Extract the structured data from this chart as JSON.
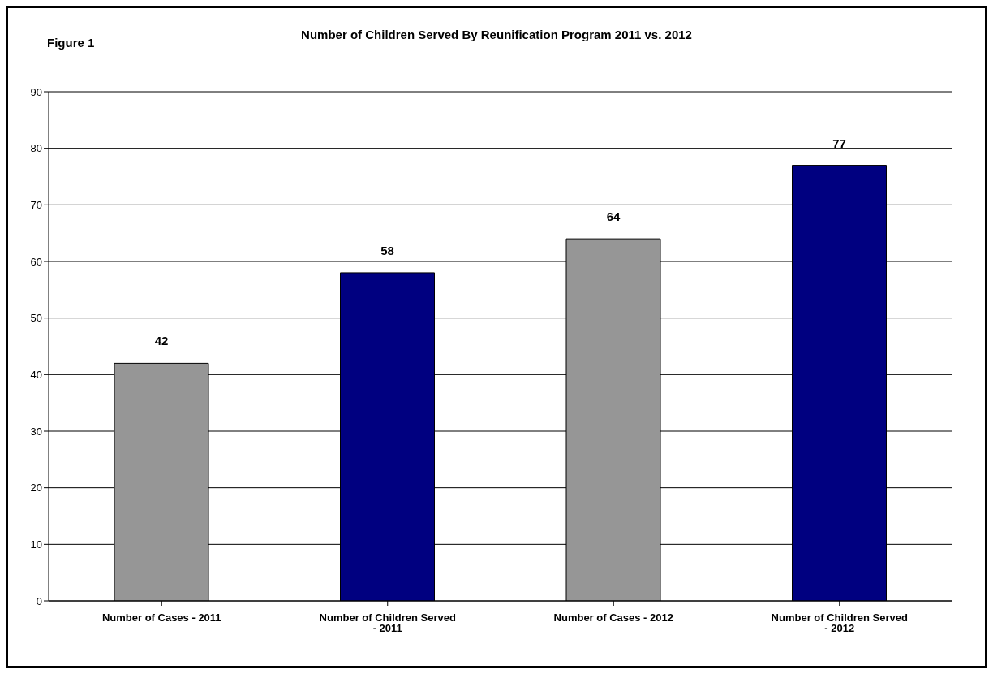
{
  "chart_data": {
    "type": "bar",
    "title": "Number of Children Served By Reunification Program 2011 vs. 2012",
    "annotations": [
      "Figure 1"
    ],
    "categories": [
      "Number of Cases - 2011",
      "Number of Children Served - 2011",
      "Number of Cases - 2012",
      "Number of Children Served - 2012"
    ],
    "values": [
      42,
      58,
      64,
      77
    ],
    "colors": [
      "#969696",
      "#000080",
      "#969696",
      "#000080"
    ],
    "ylim": [
      0,
      90
    ],
    "yticks": [
      0,
      10,
      20,
      30,
      40,
      50,
      60,
      70,
      80,
      90
    ],
    "grid": "y",
    "data_labels": true
  }
}
